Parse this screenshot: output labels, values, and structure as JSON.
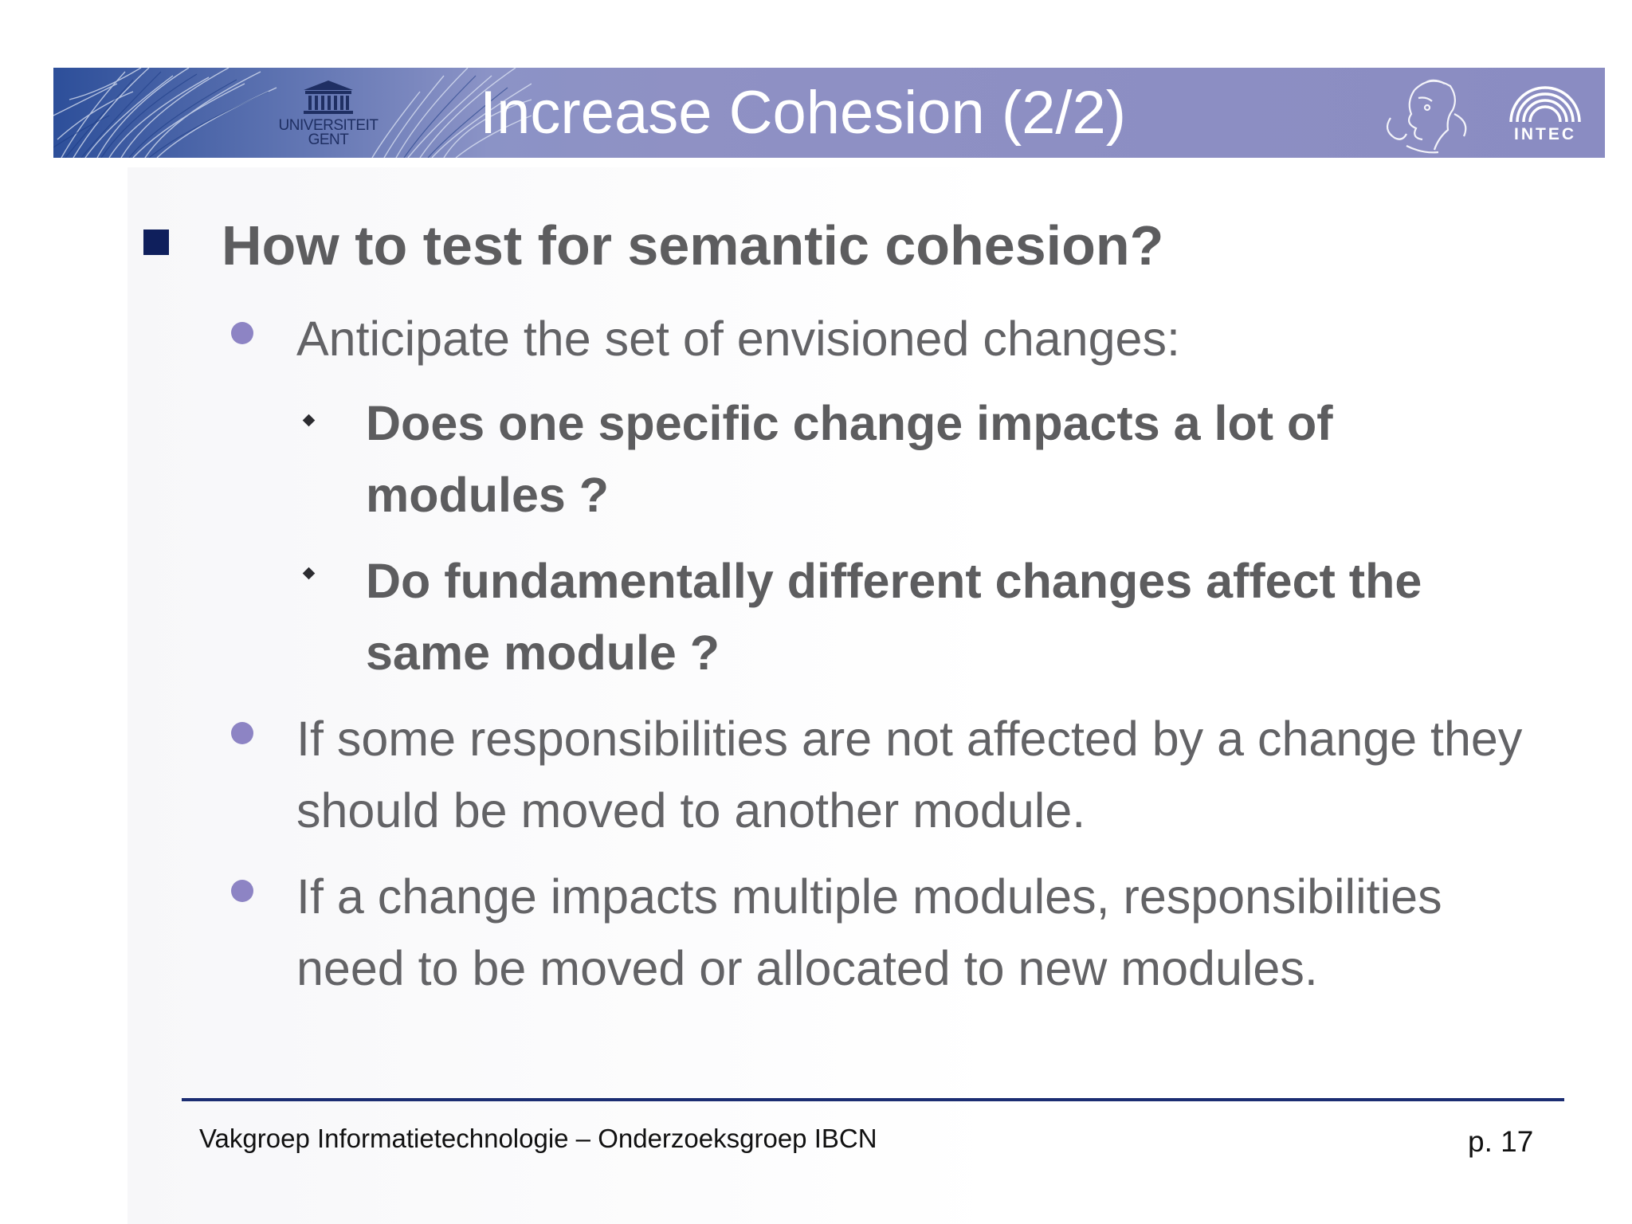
{
  "header": {
    "title": "Increase Cohesion (2/2)",
    "university_logo": {
      "icon": "university-building-icon",
      "line1": "UNIVERSITEIT",
      "line2": "GENT"
    },
    "athena_logo": {
      "icon": "athena-head-icon"
    },
    "intec_logo": {
      "icon": "intec-arches-icon",
      "text": "INTEC"
    }
  },
  "content": {
    "heading": "How to test for semantic cohesion?",
    "items": [
      {
        "text": "Anticipate the set of envisioned changes:"
      },
      {
        "text": "Does  one specific change impacts a lot of modules ?"
      },
      {
        "text": "Do fundamentally different changes affect the same module ?"
      },
      {
        "text": "If some responsibilities are not affected by a change they should be moved to another module."
      },
      {
        "text": "If a change impacts multiple modules, responsibilities need to be moved or allocated to new modules."
      }
    ]
  },
  "footer": {
    "left": "Vakgroep Informatietechnologie – Onderzoeksgroep IBCN",
    "page": "p. 17"
  },
  "colors": {
    "banner": "#8a8cc2",
    "heading_bullet": "#0f1f5c",
    "dot_bullet": "#8d84c4",
    "text": "#5d5d5f",
    "footer_rule": "#1b2d72"
  }
}
